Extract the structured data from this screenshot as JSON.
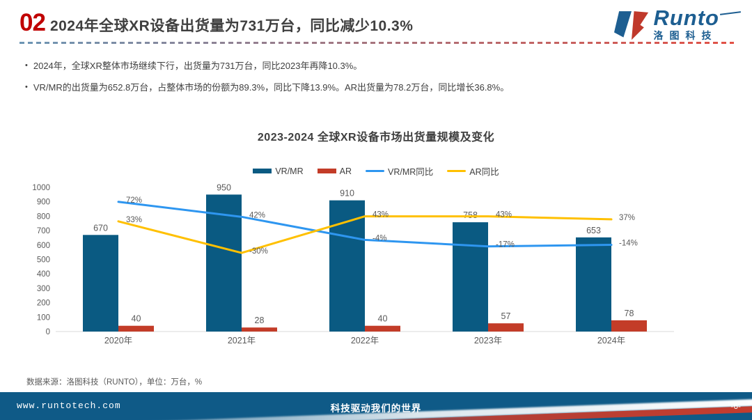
{
  "slide": {
    "section_number": "02",
    "title": "2024年全球XR设备出货量为731万台，同比减少10.3%",
    "bullets": [
      "2024年，全球XR整体市场继续下行，出货量为731万台，同比2023年再降10.3%。",
      "VR/MR的出货量为652.8万台，占整体市场的份额为89.3%，同比下降13.9%。AR出货量为78.2万台，同比增长36.8%。"
    ],
    "source_note": "数据来源：洛图科技（RUNTO），单位：万台，%"
  },
  "logo": {
    "brand": "Runto",
    "brand_cn": "洛图科技"
  },
  "chart_data": {
    "type": "combo-bar-line",
    "title": "2023-2024 全球XR设备市场出货量规模及变化",
    "categories": [
      "2020年",
      "2021年",
      "2022年",
      "2023年",
      "2024年"
    ],
    "series": [
      {
        "name": "VR/MR",
        "type": "bar",
        "values": [
          670,
          950,
          910,
          758,
          653
        ],
        "labels": [
          "670",
          "950",
          "910",
          "758",
          "653"
        ],
        "color": "#0A5A82"
      },
      {
        "name": "AR",
        "type": "bar",
        "values": [
          40,
          28,
          40,
          57,
          78
        ],
        "labels": [
          "40",
          "28",
          "40",
          "57",
          "78"
        ],
        "color": "#C33C28"
      },
      {
        "name": "VR/MR同比",
        "type": "line",
        "values": [
          72,
          42,
          -4,
          -17,
          -14
        ],
        "labels": [
          "72%",
          "42%",
          "-4%",
          "-17%",
          "-14%"
        ],
        "color": "#2E96F0"
      },
      {
        "name": "AR同比",
        "type": "line",
        "values": [
          33,
          -30,
          43,
          43,
          37
        ],
        "labels": [
          "33%",
          "-30%",
          "43%",
          "43%",
          "37%"
        ],
        "color": "#FFC000"
      }
    ],
    "y_axis": {
      "min": 0,
      "max": 1000,
      "step": 100
    },
    "legend_position": "top",
    "gridlines": false,
    "unit_note": "万台, %"
  },
  "footer": {
    "website": "www.runtotech.com",
    "slogan": "科技驱动我们的世界",
    "page_number": "-6-"
  },
  "colors": {
    "accent_red": "#C00000",
    "vr_bar": "#0A5A82",
    "ar_bar": "#C33C28",
    "vr_line": "#2E96F0",
    "ar_line": "#FFC000",
    "footer_bg": "#0F5A87",
    "divider_left": "#6D96B4",
    "divider_right": "#E25146"
  }
}
